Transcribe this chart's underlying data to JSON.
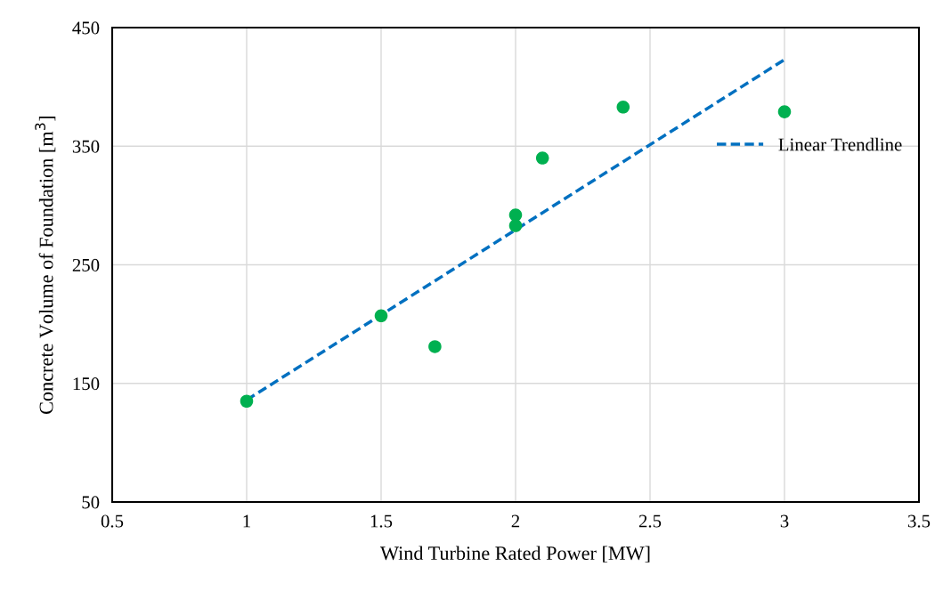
{
  "chart_data": {
    "type": "scatter",
    "xlabel": "Wind Turbine Rated Power [MW]",
    "ylabel": "Concrete Volume of Foundation [m$^{3}$]",
    "xlim": [
      0.5,
      3.5
    ],
    "xticks": [
      0.5,
      1,
      1.5,
      2,
      2.5,
      3,
      3.5
    ],
    "ylim": [
      50,
      450
    ],
    "yticks": [
      50,
      150,
      250,
      350,
      450
    ],
    "grid": true,
    "legend": "right",
    "marker": "circle",
    "series": [
      {
        "color": "#00b050",
        "x": [
          1,
          1.5,
          1.7,
          2,
          2,
          2.1,
          2.4,
          3
        ],
        "values": [
          135,
          207,
          181,
          292,
          283,
          340,
          383,
          379
        ]
      },
      {
        "type": "line",
        "name": "Linear Trendline",
        "color": "#0070c0",
        "line_style": "dashed",
        "marker": "none",
        "x": [
          1,
          3
        ],
        "values": [
          136,
          423
        ]
      }
    ]
  }
}
